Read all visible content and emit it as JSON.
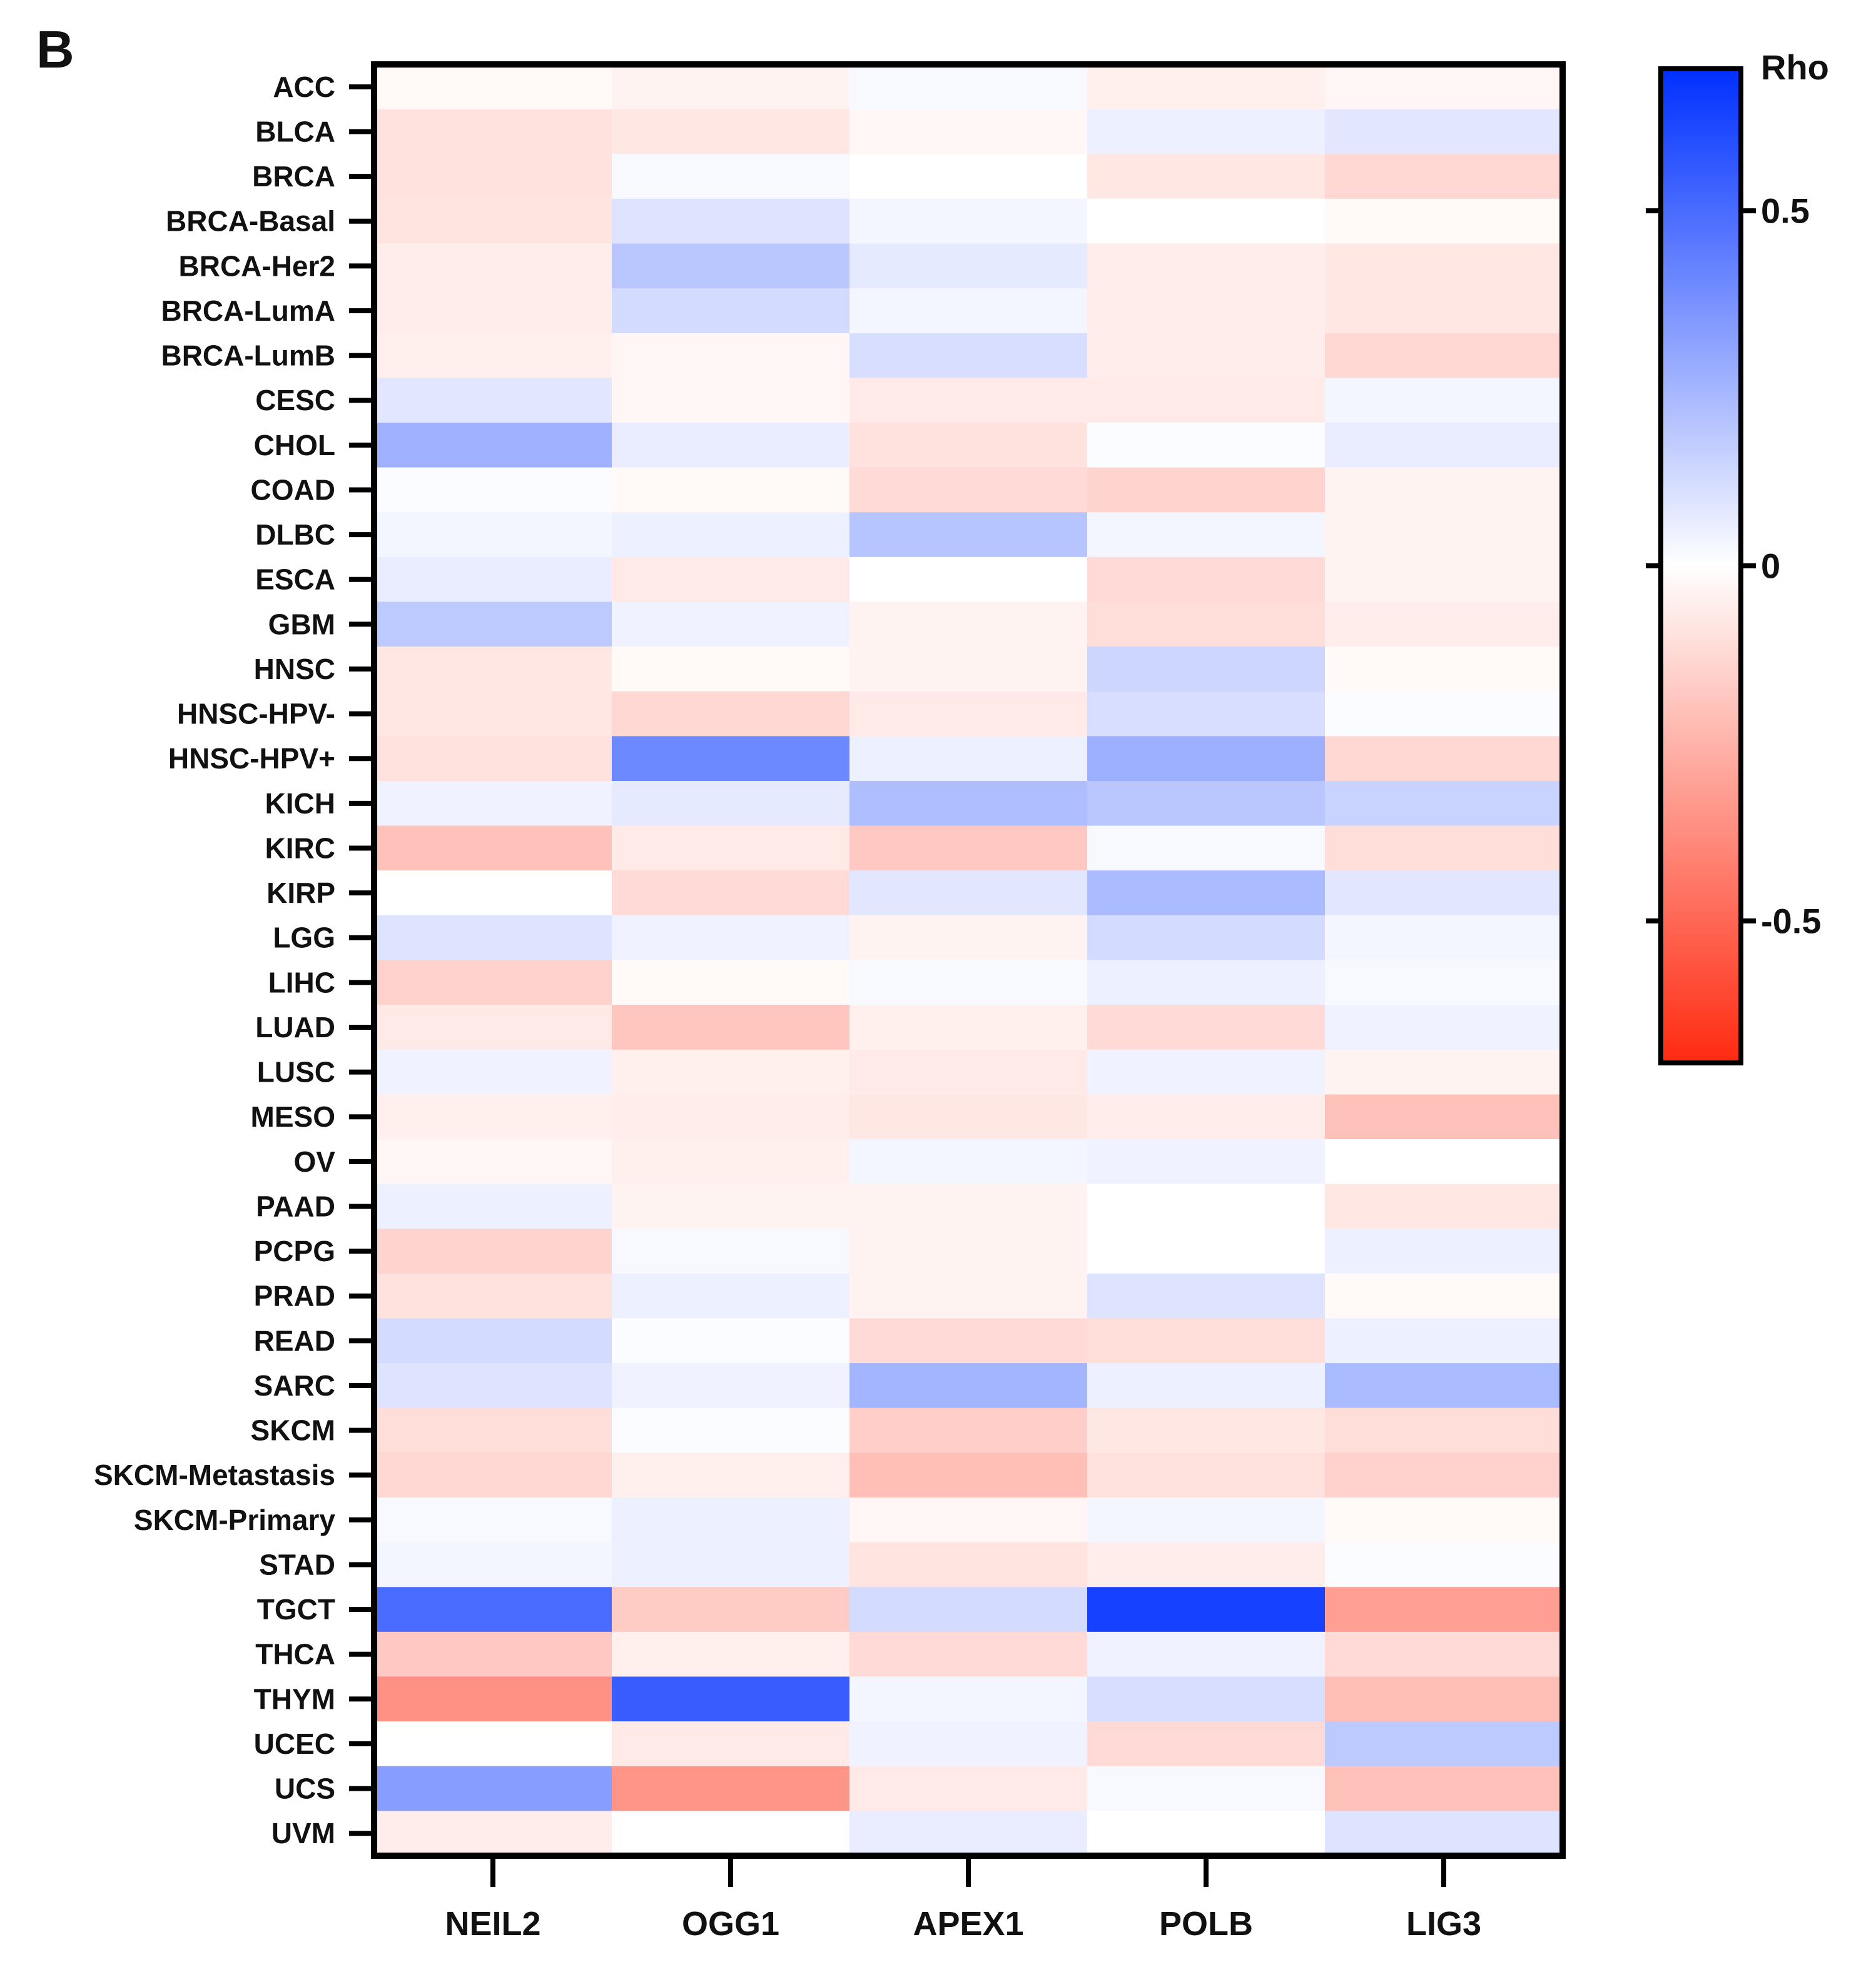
{
  "panel_label": "B",
  "chart_data": {
    "type": "heatmap",
    "title": "",
    "xlabel": "",
    "ylabel": "",
    "columns": [
      "NEIL2",
      "OGG1",
      "APEX1",
      "POLB",
      "LIG3"
    ],
    "rows": [
      "ACC",
      "BLCA",
      "BRCA",
      "BRCA-Basal",
      "BRCA-Her2",
      "BRCA-LumA",
      "BRCA-LumB",
      "CESC",
      "CHOL",
      "COAD",
      "DLBC",
      "ESCA",
      "GBM",
      "HNSC",
      "HNSC-HPV-",
      "HNSC-HPV+",
      "KICH",
      "KIRC",
      "KIRP",
      "LGG",
      "LIHC",
      "LUAD",
      "LUSC",
      "MESO",
      "OV",
      "PAAD",
      "PCPG",
      "PRAD",
      "READ",
      "SARC",
      "SKCM",
      "SKCM-Metastasis",
      "SKCM-Primary",
      "STAD",
      "TGCT",
      "THCA",
      "THYM",
      "UCEC",
      "UCS",
      "UVM"
    ],
    "values": [
      [
        -0.02,
        -0.04,
        0.02,
        -0.05,
        -0.03
      ],
      [
        -0.1,
        -0.08,
        -0.03,
        0.05,
        0.08
      ],
      [
        -0.1,
        0.02,
        0.0,
        -0.08,
        -0.13
      ],
      [
        -0.09,
        0.09,
        0.03,
        0.0,
        -0.02
      ],
      [
        -0.06,
        0.19,
        0.07,
        -0.06,
        -0.08
      ],
      [
        -0.06,
        0.12,
        0.03,
        -0.06,
        -0.08
      ],
      [
        -0.05,
        -0.03,
        0.11,
        -0.06,
        -0.13
      ],
      [
        0.08,
        -0.03,
        -0.07,
        -0.07,
        0.03
      ],
      [
        0.26,
        0.06,
        -0.1,
        0.01,
        0.06
      ],
      [
        0.01,
        -0.02,
        -0.12,
        -0.14,
        -0.04
      ],
      [
        0.03,
        0.05,
        0.2,
        0.03,
        -0.04
      ],
      [
        0.06,
        -0.07,
        0.0,
        -0.12,
        -0.04
      ],
      [
        0.18,
        0.04,
        -0.04,
        -0.11,
        -0.06
      ],
      [
        -0.08,
        -0.02,
        -0.04,
        0.14,
        -0.02
      ],
      [
        -0.08,
        -0.13,
        -0.07,
        0.11,
        0.01
      ],
      [
        -0.1,
        0.4,
        0.05,
        0.27,
        -0.13
      ],
      [
        0.04,
        0.07,
        0.22,
        0.19,
        0.15
      ],
      [
        -0.2,
        -0.07,
        -0.18,
        0.02,
        -0.11
      ],
      [
        0.0,
        -0.12,
        0.08,
        0.23,
        0.08
      ],
      [
        0.09,
        0.04,
        -0.04,
        0.12,
        0.03
      ],
      [
        -0.15,
        -0.02,
        0.02,
        0.05,
        0.02
      ],
      [
        -0.07,
        -0.19,
        -0.05,
        -0.12,
        0.04
      ],
      [
        0.04,
        -0.05,
        -0.07,
        0.04,
        -0.04
      ],
      [
        -0.05,
        -0.06,
        -0.08,
        -0.06,
        -0.2
      ],
      [
        -0.03,
        -0.05,
        0.03,
        0.04,
        0.0
      ],
      [
        0.05,
        -0.04,
        -0.04,
        0.0,
        -0.08
      ],
      [
        -0.14,
        0.02,
        -0.04,
        0.0,
        0.05
      ],
      [
        -0.1,
        0.05,
        -0.04,
        0.09,
        -0.02
      ],
      [
        0.12,
        0.01,
        -0.12,
        -0.11,
        0.05
      ],
      [
        0.09,
        0.04,
        0.25,
        0.05,
        0.23
      ],
      [
        -0.11,
        0.01,
        -0.16,
        -0.08,
        -0.11
      ],
      [
        -0.13,
        -0.05,
        -0.21,
        -0.1,
        -0.15
      ],
      [
        0.02,
        0.05,
        -0.03,
        0.03,
        -0.02
      ],
      [
        0.03,
        0.05,
        -0.09,
        -0.06,
        0.01
      ],
      [
        0.5,
        -0.17,
        0.12,
        0.64,
        -0.32
      ],
      [
        -0.18,
        -0.05,
        -0.12,
        0.04,
        -0.12
      ],
      [
        -0.36,
        0.55,
        0.03,
        0.11,
        -0.21
      ],
      [
        0.0,
        -0.07,
        0.04,
        -0.12,
        0.18
      ],
      [
        0.33,
        -0.35,
        -0.07,
        0.02,
        -0.2
      ],
      [
        -0.06,
        0.0,
        0.06,
        0.0,
        0.09
      ]
    ],
    "colorbar": {
      "title": "Rho",
      "range": [
        -0.7,
        0.7
      ],
      "ticks": [
        0.5,
        0,
        -0.5
      ],
      "tick_labels": [
        "0.5",
        "0",
        "-0.5"
      ],
      "colors": {
        "low": "#ff2a10",
        "mid": "#ffffff",
        "high": "#0030ff"
      }
    }
  }
}
